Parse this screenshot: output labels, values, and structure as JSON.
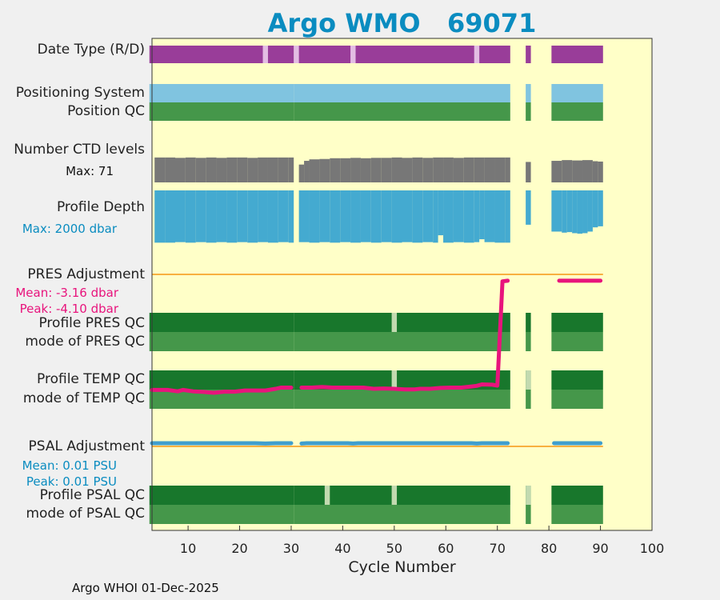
{
  "chart_data": {
    "type": "heatmap",
    "title": "Argo WMO   69071",
    "xlabel": "Cycle Number",
    "xlim": [
      3,
      100
    ],
    "xticks": [
      10,
      20,
      30,
      40,
      50,
      60,
      70,
      80,
      90,
      100
    ],
    "footer": "Argo WHOI 01-Dec-2025",
    "row_labels": {
      "date_type": "Date Type (R/D)",
      "positioning": "Positioning System",
      "position_qc": "Position QC",
      "ctd_levels": "Number CTD levels",
      "profile_depth": "Profile Depth",
      "pres_adj": "PRES Adjustment",
      "profile_pres_qc": "Profile PRES QC",
      "mode_pres_qc": "mode of PRES QC",
      "profile_temp_qc": "Profile TEMP QC",
      "mode_temp_qc": "mode of TEMP QC",
      "psal_adj": "PSAL Adjustment",
      "profile_psal_qc": "Profile PSAL QC",
      "mode_psal_qc": "mode of PSAL QC"
    },
    "annotations": {
      "ctd_max": "Max: 71",
      "depth_max": "Max: 2000 dbar",
      "pres_mean": "Mean: -3.16 dbar",
      "pres_peak": "Peak: -4.10 dbar",
      "psal_mean": "Mean: 0.01 PSU",
      "psal_peak": "Peak: 0.01 PSU"
    },
    "colors": {
      "background": "#ffffc8",
      "date_real": "#993d99",
      "date_delayed": "#e3bde3",
      "positioning": "#80c4e0",
      "qc_good": "#45974a",
      "qc_profile_A": "#18772c",
      "qc_light": "#c2dab0",
      "ctd": "#777777",
      "depth": "#44aad0",
      "pres_line": "#e8147c",
      "psal_line": "#3f9fcf",
      "zero_line": "#f8b040",
      "title": "#0a8cc0"
    },
    "segments": [
      [
        3,
        30
      ],
      [
        31,
        72
      ],
      [
        76,
        76
      ],
      [
        81,
        90
      ]
    ],
    "date_type_light_cycles": [
      25,
      31,
      42,
      66
    ],
    "profile_pres_light_cycles": [
      50
    ],
    "profile_temp_light_cycles": [
      50,
      76
    ],
    "profile_psal_light_cycles": [
      37,
      50,
      76
    ],
    "ctd_levels_max": 71,
    "ctd_levels": {
      "cycles": [
        4,
        6,
        8,
        10,
        12,
        14,
        16,
        18,
        20,
        22,
        24,
        26,
        28,
        30,
        32,
        33,
        34,
        36,
        38,
        40,
        42,
        44,
        46,
        48,
        50,
        52,
        54,
        56,
        58,
        60,
        62,
        64,
        66,
        68,
        70,
        72,
        76,
        81,
        83,
        85,
        87,
        89,
        90
      ],
      "values": [
        67,
        67,
        66,
        67,
        66,
        67,
        66,
        67,
        67,
        66,
        67,
        67,
        67,
        67,
        48,
        58,
        62,
        63,
        65,
        65,
        66,
        65,
        66,
        66,
        67,
        66,
        67,
        66,
        67,
        67,
        66,
        67,
        67,
        67,
        67,
        67,
        55,
        58,
        60,
        59,
        60,
        57,
        56
      ]
    },
    "profile_depth_max_dbar": 2000,
    "profile_depth": {
      "cycles": [
        4,
        6,
        8,
        10,
        12,
        14,
        16,
        18,
        20,
        22,
        24,
        26,
        28,
        30,
        32,
        34,
        36,
        38,
        40,
        42,
        44,
        46,
        48,
        50,
        52,
        54,
        56,
        58,
        59,
        60,
        62,
        64,
        66,
        67,
        68,
        70,
        72,
        76,
        81,
        83,
        84,
        85,
        86,
        87,
        88,
        89,
        90
      ],
      "values": [
        1980,
        1980,
        1960,
        1980,
        1960,
        1980,
        1960,
        1980,
        1960,
        1980,
        1960,
        1980,
        1960,
        1980,
        1960,
        1980,
        1960,
        1980,
        1960,
        1980,
        1960,
        1980,
        1960,
        1980,
        1960,
        1980,
        1960,
        1980,
        1700,
        1980,
        1960,
        1980,
        1960,
        1850,
        1960,
        1980,
        1980,
        1300,
        1560,
        1600,
        1580,
        1620,
        1640,
        1620,
        1560,
        1400,
        1360
      ]
    },
    "pres_adjustment": {
      "cycles": [
        3,
        6,
        8,
        9,
        11,
        13,
        15,
        17,
        19,
        21,
        23,
        25,
        27,
        28,
        30,
        32,
        34,
        36,
        38,
        40,
        42,
        44,
        46,
        48,
        50,
        52,
        54,
        55,
        57,
        59,
        61,
        63,
        65,
        66,
        67,
        69,
        70,
        71,
        72,
        82,
        86,
        90
      ],
      "values": [
        -4.0,
        -4.0,
        -4.05,
        -4.0,
        -4.05,
        -4.07,
        -4.1,
        -4.06,
        -4.06,
        -4.02,
        -4.02,
        -4.02,
        -3.96,
        -3.92,
        -3.92,
        -3.92,
        -3.92,
        -3.9,
        -3.92,
        -3.92,
        -3.92,
        -3.92,
        -3.96,
        -3.95,
        -3.96,
        -3.98,
        -3.98,
        -3.96,
        -3.96,
        -3.93,
        -3.92,
        -3.92,
        -3.88,
        -3.86,
        -3.81,
        -3.82,
        -3.85,
        -0.24,
        -0.22,
        -0.22,
        -0.22,
        -0.22
      ],
      "breaks_after": [
        30,
        72
      ]
    },
    "psal_adjustment": {
      "cycles": [
        3,
        7,
        11,
        15,
        19,
        23,
        25,
        27,
        30,
        32,
        33,
        35,
        37,
        39,
        41,
        42,
        43,
        45,
        47,
        49,
        51,
        53,
        55,
        57,
        59,
        61,
        63,
        65,
        66,
        67,
        69,
        72,
        81,
        84,
        87,
        90
      ],
      "values": [
        0.01,
        0.01,
        0.01,
        0.01,
        0.01,
        0.01,
        0.008,
        0.01,
        0.01,
        0.008,
        0.01,
        0.01,
        0.01,
        0.01,
        0.01,
        0.008,
        0.01,
        0.01,
        0.01,
        0.01,
        0.01,
        0.01,
        0.01,
        0.01,
        0.01,
        0.01,
        0.01,
        0.01,
        0.008,
        0.01,
        0.01,
        0.01,
        0.01,
        0.01,
        0.01,
        0.01
      ],
      "breaks_after": [
        30,
        72
      ]
    }
  }
}
